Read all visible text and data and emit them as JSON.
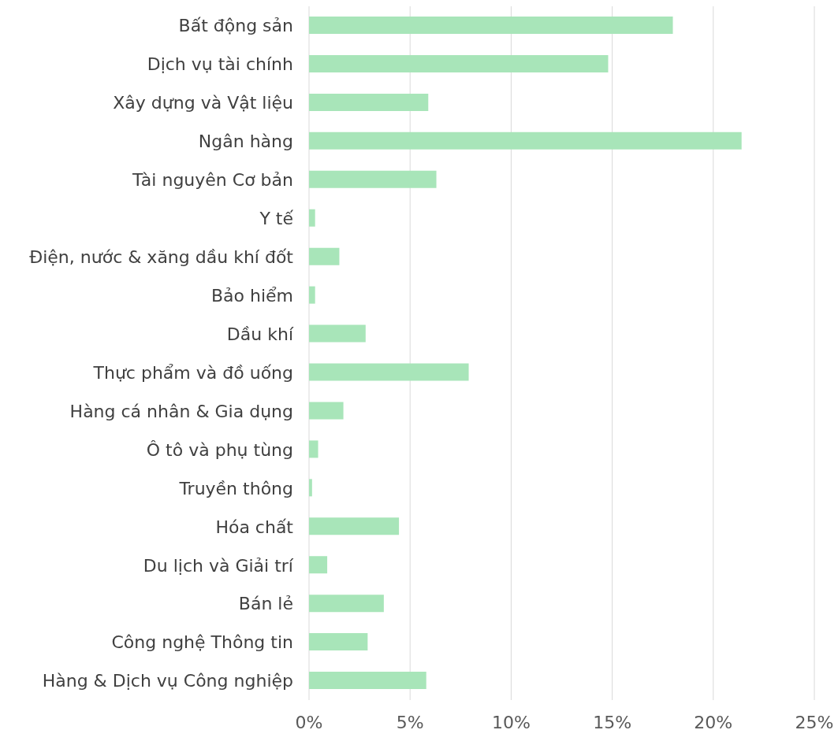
{
  "chart_data": {
    "type": "bar",
    "orientation": "horizontal",
    "categories": [
      "Bất động sản",
      "Dịch vụ tài chính",
      "Xây dựng và Vật liệu",
      "Ngân hàng",
      "Tài nguyên Cơ bản",
      "Y tế",
      "Điện, nước & xăng dầu khí đốt",
      "Bảo hiểm",
      "Dầu khí",
      "Thực phẩm và đồ uống",
      "Hàng cá nhân & Gia dụng",
      "Ô tô và phụ tùng",
      "Truyền thông",
      "Hóa chất",
      "Du lịch và Giải trí",
      "Bán lẻ",
      "Công nghệ Thông tin",
      "Hàng & Dịch vụ Công nghiệp"
    ],
    "values": [
      18.0,
      14.8,
      5.9,
      21.4,
      6.3,
      0.3,
      1.5,
      0.3,
      2.8,
      7.9,
      1.7,
      0.45,
      0.15,
      4.45,
      0.9,
      3.7,
      2.9,
      5.8
    ],
    "color": "#a8e5b9",
    "xlim": [
      0,
      25
    ],
    "xticks": [
      {
        "value": 0,
        "label": "0%"
      },
      {
        "value": 5,
        "label": "5%"
      },
      {
        "value": 10,
        "label": "10%"
      },
      {
        "value": 15,
        "label": "15%"
      },
      {
        "value": 20,
        "label": "20%"
      },
      {
        "value": 25,
        "label": "25%"
      }
    ],
    "grid": "x"
  }
}
